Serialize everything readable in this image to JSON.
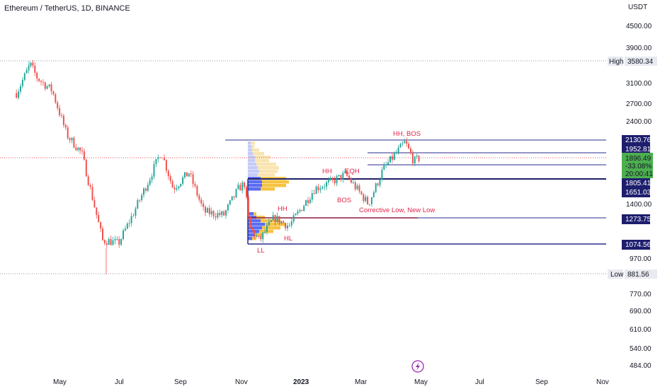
{
  "header": {
    "title": "Ethereum / TetherUS, 1D, BINANCE"
  },
  "price_axis": {
    "currency": "USDT",
    "ticks": [
      "4500.00",
      "3900.00",
      "3100.00",
      "2700.00",
      "2400.00",
      "1400.00",
      "970.00",
      "770.00",
      "690.00",
      "610.00",
      "540.00",
      "484.00"
    ]
  },
  "time_axis": {
    "labels": [
      "May",
      "Jul",
      "Sep",
      "Nov",
      "2023",
      "Mar",
      "May",
      "Jul",
      "Sep",
      "Nov"
    ]
  },
  "markers": {
    "high_label": "High",
    "high_value": "3580.34",
    "low_label": "Low",
    "low_value": "881.56"
  },
  "level_tags": [
    {
      "value": "2130.76"
    },
    {
      "value": "1952.81"
    },
    {
      "value": "1805.41"
    },
    {
      "value": "1651.03"
    },
    {
      "value": "1273.75"
    },
    {
      "value": "1074.56"
    }
  ],
  "current_price": {
    "price": "1896.49",
    "change": "-33.08%",
    "countdown": "20:00:41"
  },
  "annotations": [
    {
      "text": "HH, BOS"
    },
    {
      "text": "HH"
    },
    {
      "text": "EQH"
    },
    {
      "text": "BOS"
    },
    {
      "text": "Corrective Low, New Low"
    },
    {
      "text": "HH"
    },
    {
      "text": "HL"
    },
    {
      "text": "LL"
    }
  ],
  "colors": {
    "up": "#26a69a",
    "down": "#ef5350",
    "level": "#2b2b8c",
    "annotation": "#e0254a",
    "tag_bg": "#1e1e6e",
    "current_bg": "#4caf50",
    "vp_blue": "#5b6df0",
    "vp_yellow": "#f6c342"
  },
  "chart_data": {
    "type": "candlestick",
    "title": "Ethereum / TetherUS, 1D, BINANCE",
    "scale": "log",
    "ylim": [
      470,
      4800
    ],
    "x_range": [
      "2022-04",
      "2023-11"
    ],
    "series_close": [
      {
        "x": "2022-03-20",
        "y": 2900
      },
      {
        "x": "2022-04-03",
        "y": 3500
      },
      {
        "x": "2022-04-10",
        "y": 3200
      },
      {
        "x": "2022-04-25",
        "y": 2950
      },
      {
        "x": "2022-05-10",
        "y": 2200
      },
      {
        "x": "2022-05-25",
        "y": 1950
      },
      {
        "x": "2022-06-15",
        "y": 1100
      },
      {
        "x": "2022-06-20",
        "y": 1100
      },
      {
        "x": "2022-07-01",
        "y": 1080
      },
      {
        "x": "2022-07-15",
        "y": 1300
      },
      {
        "x": "2022-08-01",
        "y": 1650
      },
      {
        "x": "2022-08-13",
        "y": 1980
      },
      {
        "x": "2022-08-25",
        "y": 1550
      },
      {
        "x": "2022-09-10",
        "y": 1720
      },
      {
        "x": "2022-09-25",
        "y": 1330
      },
      {
        "x": "2022-10-15",
        "y": 1300
      },
      {
        "x": "2022-10-30",
        "y": 1550
      },
      {
        "x": "2022-11-05",
        "y": 1600
      },
      {
        "x": "2022-11-10",
        "y": 1200
      },
      {
        "x": "2022-11-20",
        "y": 1100
      },
      {
        "x": "2022-12-05",
        "y": 1280
      },
      {
        "x": "2022-12-20",
        "y": 1210
      },
      {
        "x": "2023-01-15",
        "y": 1550
      },
      {
        "x": "2023-02-01",
        "y": 1620
      },
      {
        "x": "2023-02-15",
        "y": 1700
      },
      {
        "x": "2023-03-10",
        "y": 1400
      },
      {
        "x": "2023-03-25",
        "y": 1760
      },
      {
        "x": "2023-04-16",
        "y": 2100
      },
      {
        "x": "2023-04-25",
        "y": 1850
      },
      {
        "x": "2023-05-01",
        "y": 1896
      }
    ],
    "levels": [
      2130.76,
      1952.81,
      1805.41,
      1651.03,
      1273.75,
      1074.56
    ],
    "high": 3580.34,
    "low": 881.56
  }
}
